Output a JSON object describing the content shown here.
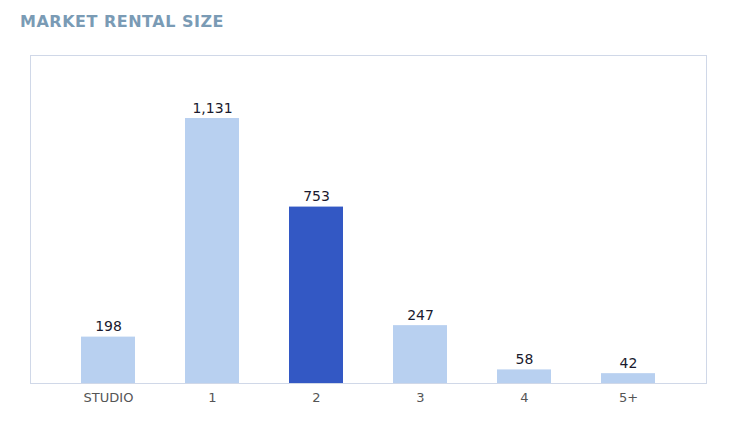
{
  "chart_data": {
    "type": "bar",
    "title": "MARKET RENTAL SIZE",
    "categories": [
      "STUDIO",
      "1",
      "2",
      "3",
      "4",
      "5+"
    ],
    "values": [
      198,
      1131,
      753,
      247,
      58,
      42
    ],
    "value_labels": [
      "198",
      "1,131",
      "753",
      "247",
      "58",
      "42"
    ],
    "colors": [
      "#b8d0f0",
      "#b8d0f0",
      "#3358c4",
      "#b8d0f0",
      "#b8d0f0",
      "#b8d0f0"
    ],
    "ylim": [
      0,
      1400
    ],
    "grid": false,
    "data_labels": true,
    "tick_labels": "x"
  }
}
